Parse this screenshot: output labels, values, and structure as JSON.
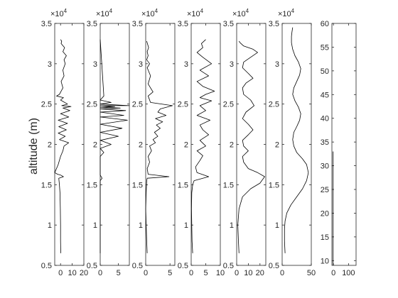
{
  "chart_data": [
    {
      "type": "line",
      "title": "",
      "xlabel": "",
      "ylabel": "altitude (m)",
      "xlim": [
        -5,
        20
      ],
      "ylim": [
        0.5,
        3.5
      ],
      "y_exponent_label": "×10^4",
      "xticks": [
        0,
        10,
        20
      ],
      "yticks": [
        0.5,
        1,
        1.5,
        2,
        2.5,
        3,
        3.5
      ],
      "ytick_labels": [
        "0.5",
        "1",
        "1.5",
        "2",
        "2.5",
        "3",
        "3.5"
      ],
      "grid": false,
      "series": [
        {
          "x": [
            0.2,
            0.0,
            0.0,
            -0.2,
            -0.5,
            -1.0,
            -1.5,
            2.5,
            0.0,
            -2.5,
            -5.0,
            -2.0,
            0.0,
            2.0,
            3.0,
            7.0,
            -1.0,
            4.0,
            -2.0,
            5.0,
            -1.5,
            6.0,
            -2.0,
            7.0,
            0.0,
            8.0,
            2.0,
            9.0,
            1.0,
            6.0,
            0.0,
            2.5,
            -3.5,
            -1.0,
            2.0,
            0.5,
            3.0,
            2.0,
            4.0,
            3.0,
            5.0,
            2.0,
            3.5,
            0.5,
            1.0,
            0.0
          ],
          "y": [
            0.65,
            0.8,
            1.0,
            1.2,
            1.4,
            1.5,
            1.58,
            1.6,
            1.62,
            1.63,
            1.65,
            1.75,
            1.85,
            1.92,
            1.98,
            2.02,
            2.06,
            2.1,
            2.14,
            2.18,
            2.22,
            2.26,
            2.3,
            2.34,
            2.38,
            2.42,
            2.45,
            2.47,
            2.48,
            2.5,
            2.55,
            2.58,
            2.6,
            2.62,
            2.7,
            2.78,
            2.85,
            2.92,
            3.0,
            3.05,
            3.1,
            3.15,
            3.2,
            3.25,
            3.28,
            3.3
          ]
        }
      ]
    },
    {
      "type": "line",
      "title": "",
      "xlabel": "",
      "ylabel": "",
      "xlim": [
        0,
        8
      ],
      "ylim": [
        0.5,
        3.5
      ],
      "y_exponent_label": "×10^4",
      "xticks": [
        0,
        5
      ],
      "yticks": [
        0.5,
        1,
        1.5,
        2,
        2.5,
        3,
        3.5
      ],
      "ytick_labels": [
        "0.5",
        "1",
        "1.5",
        "2",
        "2.5",
        "3",
        "3.5"
      ],
      "grid": false,
      "series": [
        {
          "x": [
            0.0,
            0.0,
            0.5,
            0.0,
            0.0,
            1.0,
            0.0,
            3.0,
            0.0,
            5.0,
            0.0,
            6.0,
            0.0,
            7.5,
            0.0,
            6.5,
            0.0,
            7.0,
            0.0,
            5.5,
            0.0,
            4.0,
            0.0,
            8.0,
            0.0,
            3.0,
            0.0,
            1.0,
            0.0
          ],
          "y": [
            0.65,
            1.55,
            1.58,
            1.62,
            1.85,
            1.9,
            1.95,
            2.0,
            2.05,
            2.1,
            2.15,
            2.2,
            2.25,
            2.3,
            2.34,
            2.36,
            2.4,
            2.42,
            2.44,
            2.45,
            2.46,
            2.47,
            2.48,
            2.48,
            2.5,
            2.52,
            2.55,
            2.6,
            3.3
          ]
        }
      ]
    },
    {
      "type": "line",
      "title": "",
      "xlabel": "",
      "ylabel": "",
      "xlim": [
        0,
        6
      ],
      "ylim": [
        0.5,
        3.5
      ],
      "y_exponent_label": "×10^4",
      "xticks": [
        0,
        5
      ],
      "yticks": [
        0.5,
        1,
        1.5,
        2,
        2.5,
        3,
        3.5
      ],
      "ytick_labels": [
        "0.5",
        "1",
        "1.5",
        "2",
        "2.5",
        "3",
        "3.5"
      ],
      "grid": false,
      "series": [
        {
          "x": [
            0.3,
            0.2,
            0.1,
            0.0,
            0.1,
            0.2,
            0.3,
            4.8,
            0.5,
            0.3,
            0.8,
            0.5,
            1.2,
            0.8,
            2.0,
            1.5,
            2.5,
            1.8,
            3.0,
            2.2,
            3.5,
            2.0,
            4.2,
            2.5,
            3.0,
            5.5,
            1.0,
            0.5,
            1.5,
            0.5,
            1.0,
            0.3,
            0.8,
            0.2,
            0.5,
            0.3,
            0.6,
            0.2
          ],
          "y": [
            0.65,
            0.8,
            1.0,
            1.2,
            1.4,
            1.55,
            1.58,
            1.6,
            1.63,
            1.7,
            1.78,
            1.85,
            1.92,
            1.98,
            2.02,
            2.06,
            2.1,
            2.15,
            2.2,
            2.24,
            2.28,
            2.32,
            2.36,
            2.4,
            2.44,
            2.48,
            2.52,
            2.6,
            2.65,
            2.75,
            2.85,
            2.95,
            3.0,
            3.05,
            3.1,
            3.15,
            3.2,
            3.28
          ]
        }
      ]
    },
    {
      "type": "line",
      "title": "",
      "xlabel": "",
      "ylabel": "",
      "xlim": [
        0,
        10
      ],
      "ylim": [
        0.5,
        3.5
      ],
      "y_exponent_label": "×10^4",
      "xticks": [
        0,
        5,
        10
      ],
      "yticks": [
        0.5,
        1,
        1.5,
        2,
        2.5,
        3,
        3.5
      ],
      "ytick_labels": [
        "0.5",
        "1",
        "1.5",
        "2",
        "2.5",
        "3",
        "3.5"
      ],
      "grid": false,
      "series": [
        {
          "x": [
            0.5,
            0.3,
            0.2,
            0.1,
            0.2,
            0.5,
            1.0,
            6.0,
            2.0,
            1.5,
            3.0,
            4.0,
            2.0,
            5.0,
            3.0,
            6.0,
            4.0,
            3.0,
            6.5,
            2.0,
            5.0,
            3.0,
            7.0,
            3.0,
            5.0,
            8.0,
            4.0,
            2.0,
            6.0,
            3.0,
            7.0,
            4.0,
            2.0,
            4.0,
            3.5,
            5.0
          ],
          "y": [
            0.65,
            0.8,
            1.0,
            1.2,
            1.4,
            1.5,
            1.55,
            1.6,
            1.65,
            1.72,
            1.8,
            1.86,
            1.92,
            1.98,
            2.05,
            2.12,
            2.18,
            2.24,
            2.3,
            2.36,
            2.42,
            2.48,
            2.54,
            2.58,
            2.62,
            2.66,
            2.72,
            2.78,
            2.85,
            2.92,
            3.0,
            3.08,
            3.14,
            3.2,
            3.25,
            3.3
          ]
        }
      ]
    },
    {
      "type": "line",
      "title": "",
      "xlabel": "",
      "ylabel": "",
      "xlim": [
        0,
        25
      ],
      "ylim": [
        0.5,
        3.5
      ],
      "y_exponent_label": "×10^4",
      "xticks": [
        0,
        10,
        20
      ],
      "yticks": [
        0.5,
        1,
        1.5,
        2,
        2.5,
        3,
        3.5
      ],
      "ytick_labels": [
        "0.5",
        "1",
        "1.5",
        "2",
        "2.5",
        "3",
        "3.5"
      ],
      "grid": false,
      "series": [
        {
          "x": [
            2.0,
            1.5,
            1.0,
            2.0,
            5.0,
            12.0,
            20.0,
            24.0,
            18.0,
            10.0,
            6.0,
            5.0,
            10.0,
            6.0,
            5.0,
            10.0,
            14.0,
            10.0,
            5.0,
            8.0,
            15.0,
            12.0,
            6.0,
            5.0,
            8.0,
            14.0,
            10.0,
            5.0,
            6.0,
            12.0,
            18.0,
            14.0,
            6.0,
            3.0,
            2.0
          ],
          "y": [
            0.65,
            0.8,
            1.0,
            1.2,
            1.35,
            1.45,
            1.52,
            1.6,
            1.65,
            1.7,
            1.78,
            1.85,
            1.92,
            1.98,
            2.05,
            2.12,
            2.18,
            2.25,
            2.32,
            2.4,
            2.48,
            2.55,
            2.62,
            2.7,
            2.76,
            2.82,
            2.88,
            2.95,
            3.02,
            3.08,
            3.14,
            3.18,
            3.22,
            3.26,
            3.28
          ]
        }
      ]
    },
    {
      "type": "line",
      "title": "",
      "xlabel": "",
      "ylabel": "",
      "xlim": [
        0,
        50
      ],
      "ylim": [
        0.5,
        3.5
      ],
      "y_exponent_label": "×10^4",
      "xticks": [
        0,
        50
      ],
      "yticks": [
        0.5,
        1,
        1.5,
        2,
        2.5,
        3,
        3.5
      ],
      "ytick_labels": [
        "0.5",
        "1",
        "1.5",
        "2",
        "2.5",
        "3",
        "3.5"
      ],
      "grid": false,
      "series": [
        {
          "x": [
            5.0,
            4.0,
            4.0,
            5.0,
            8.0,
            15.0,
            25.0,
            35.0,
            42.0,
            45.0,
            42.0,
            35.0,
            25.0,
            20.0,
            18.0,
            20.0,
            25.0,
            30.0,
            32.0,
            28.0,
            22.0,
            18.0,
            20.0,
            25.0,
            30.0,
            32.0,
            28.0,
            22.0,
            18.0,
            16.0,
            16.0,
            17.0,
            18.0
          ],
          "y": [
            0.65,
            0.8,
            0.95,
            1.05,
            1.15,
            1.25,
            1.35,
            1.45,
            1.55,
            1.65,
            1.75,
            1.82,
            1.9,
            1.98,
            2.06,
            2.15,
            2.22,
            2.3,
            2.38,
            2.46,
            2.54,
            2.62,
            2.7,
            2.78,
            2.86,
            2.94,
            3.02,
            3.1,
            3.18,
            3.26,
            3.34,
            3.4,
            3.45
          ]
        }
      ]
    },
    {
      "type": "line",
      "title": "",
      "xlabel": "",
      "ylabel": "",
      "xlim": [
        -10,
        150
      ],
      "ylim": [
        9,
        60
      ],
      "xticks": [
        0,
        100
      ],
      "yticks": [
        10,
        15,
        20,
        25,
        30,
        35,
        40,
        45,
        50,
        55,
        60
      ],
      "ytick_labels": [
        "10",
        "15",
        "20",
        "25",
        "30",
        "35",
        "40",
        "45",
        "50",
        "55",
        "60"
      ],
      "grid": false,
      "series": [
        {
          "x": [
            -2.0,
            -2.0
          ],
          "y": [
            9.0,
            33.0
          ]
        }
      ]
    }
  ]
}
